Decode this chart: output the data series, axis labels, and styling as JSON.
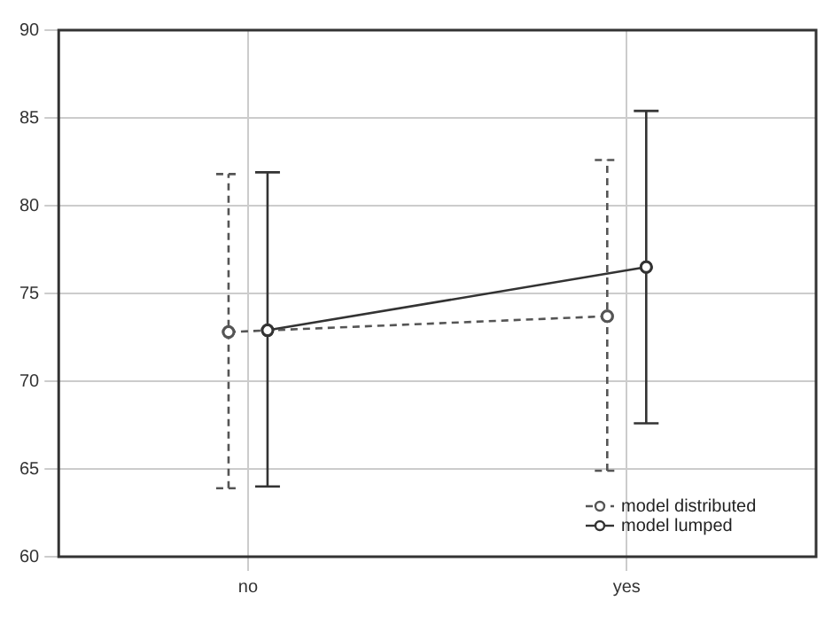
{
  "chart_data": {
    "type": "line",
    "categories": [
      "no",
      "yes"
    ],
    "series": [
      {
        "name": "model distributed",
        "color": "#555555",
        "line_style": "dashed",
        "values": [
          72.8,
          73.7
        ],
        "errors": [
          [
            63.9,
            81.8
          ],
          [
            64.9,
            82.6
          ]
        ]
      },
      {
        "name": "model lumped",
        "color": "#333333",
        "line_style": "solid",
        "values": [
          72.9,
          76.5
        ],
        "errors": [
          [
            64.0,
            81.9
          ],
          [
            67.6,
            85.4
          ]
        ]
      }
    ],
    "ylim": [
      60,
      90
    ],
    "yticks": [
      60,
      65,
      70,
      75,
      80,
      85,
      90
    ],
    "grid": true,
    "legend": "bottom right",
    "marker": "circle"
  }
}
